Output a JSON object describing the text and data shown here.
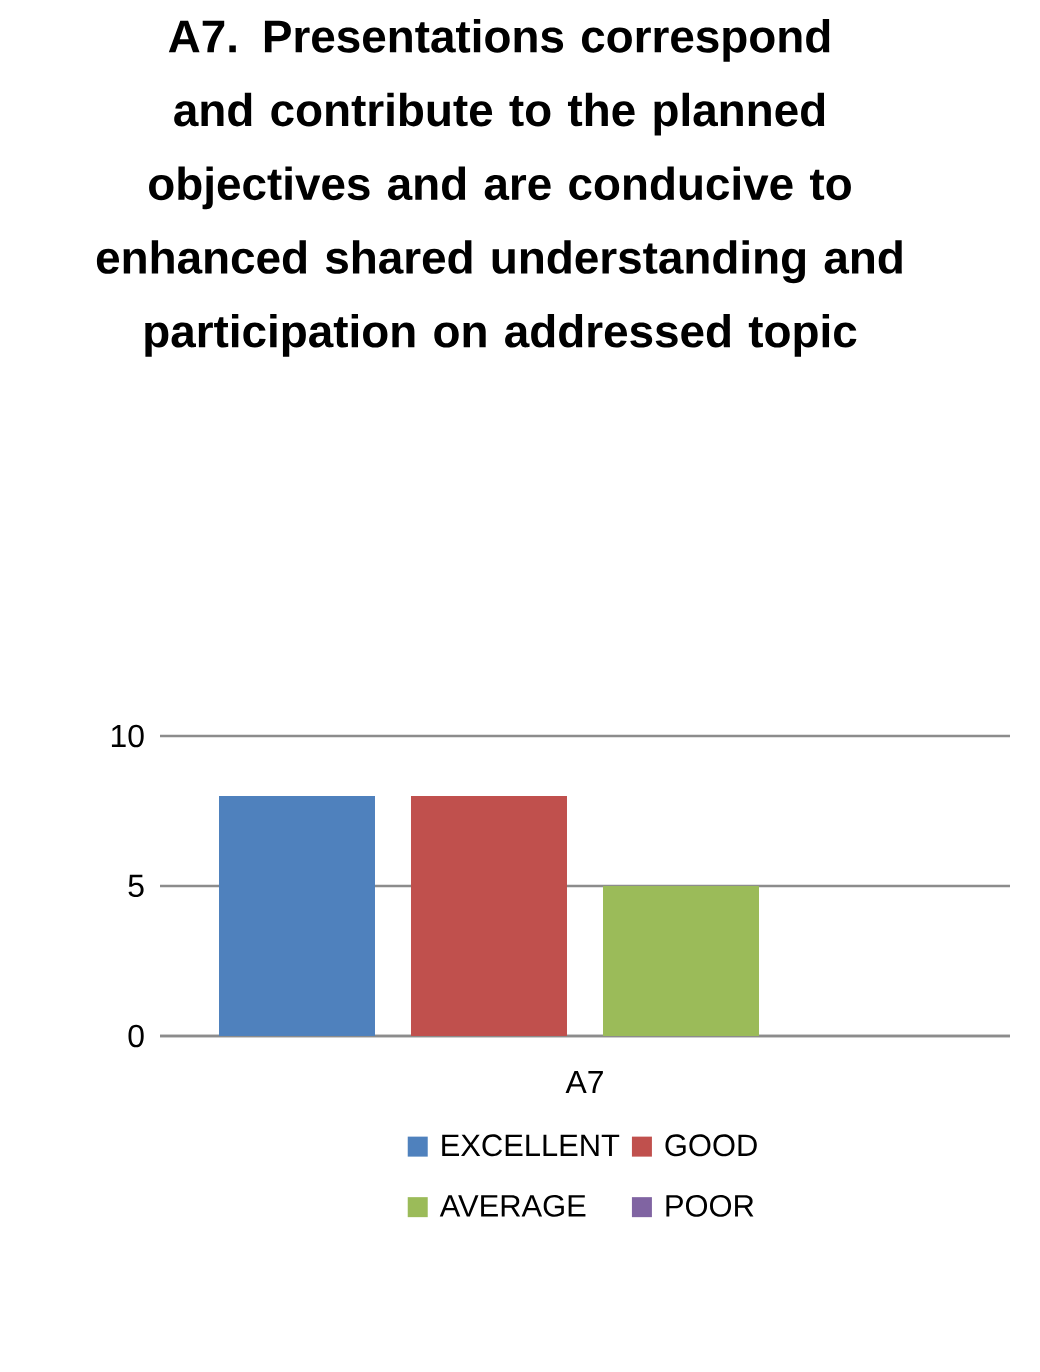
{
  "chart_data": {
    "type": "bar",
    "title": "A7. Presentations correspond and contribute to the planned objectives and are conducive to enhanced shared understanding and participation on addressed topic",
    "categories": [
      "A7"
    ],
    "series": [
      {
        "name": "EXCELLENT",
        "color": "#4f81bd",
        "values": [
          8
        ]
      },
      {
        "name": "GOOD",
        "color": "#c0504d",
        "values": [
          8
        ]
      },
      {
        "name": "AVERAGE",
        "color": "#9bbb59",
        "values": [
          5
        ]
      },
      {
        "name": "POOR",
        "color": "#8064a2",
        "values": [
          0
        ]
      }
    ],
    "ylim": [
      0,
      10
    ],
    "yticks": [
      0,
      5,
      10
    ],
    "grid": "y",
    "legend": "bottom"
  }
}
